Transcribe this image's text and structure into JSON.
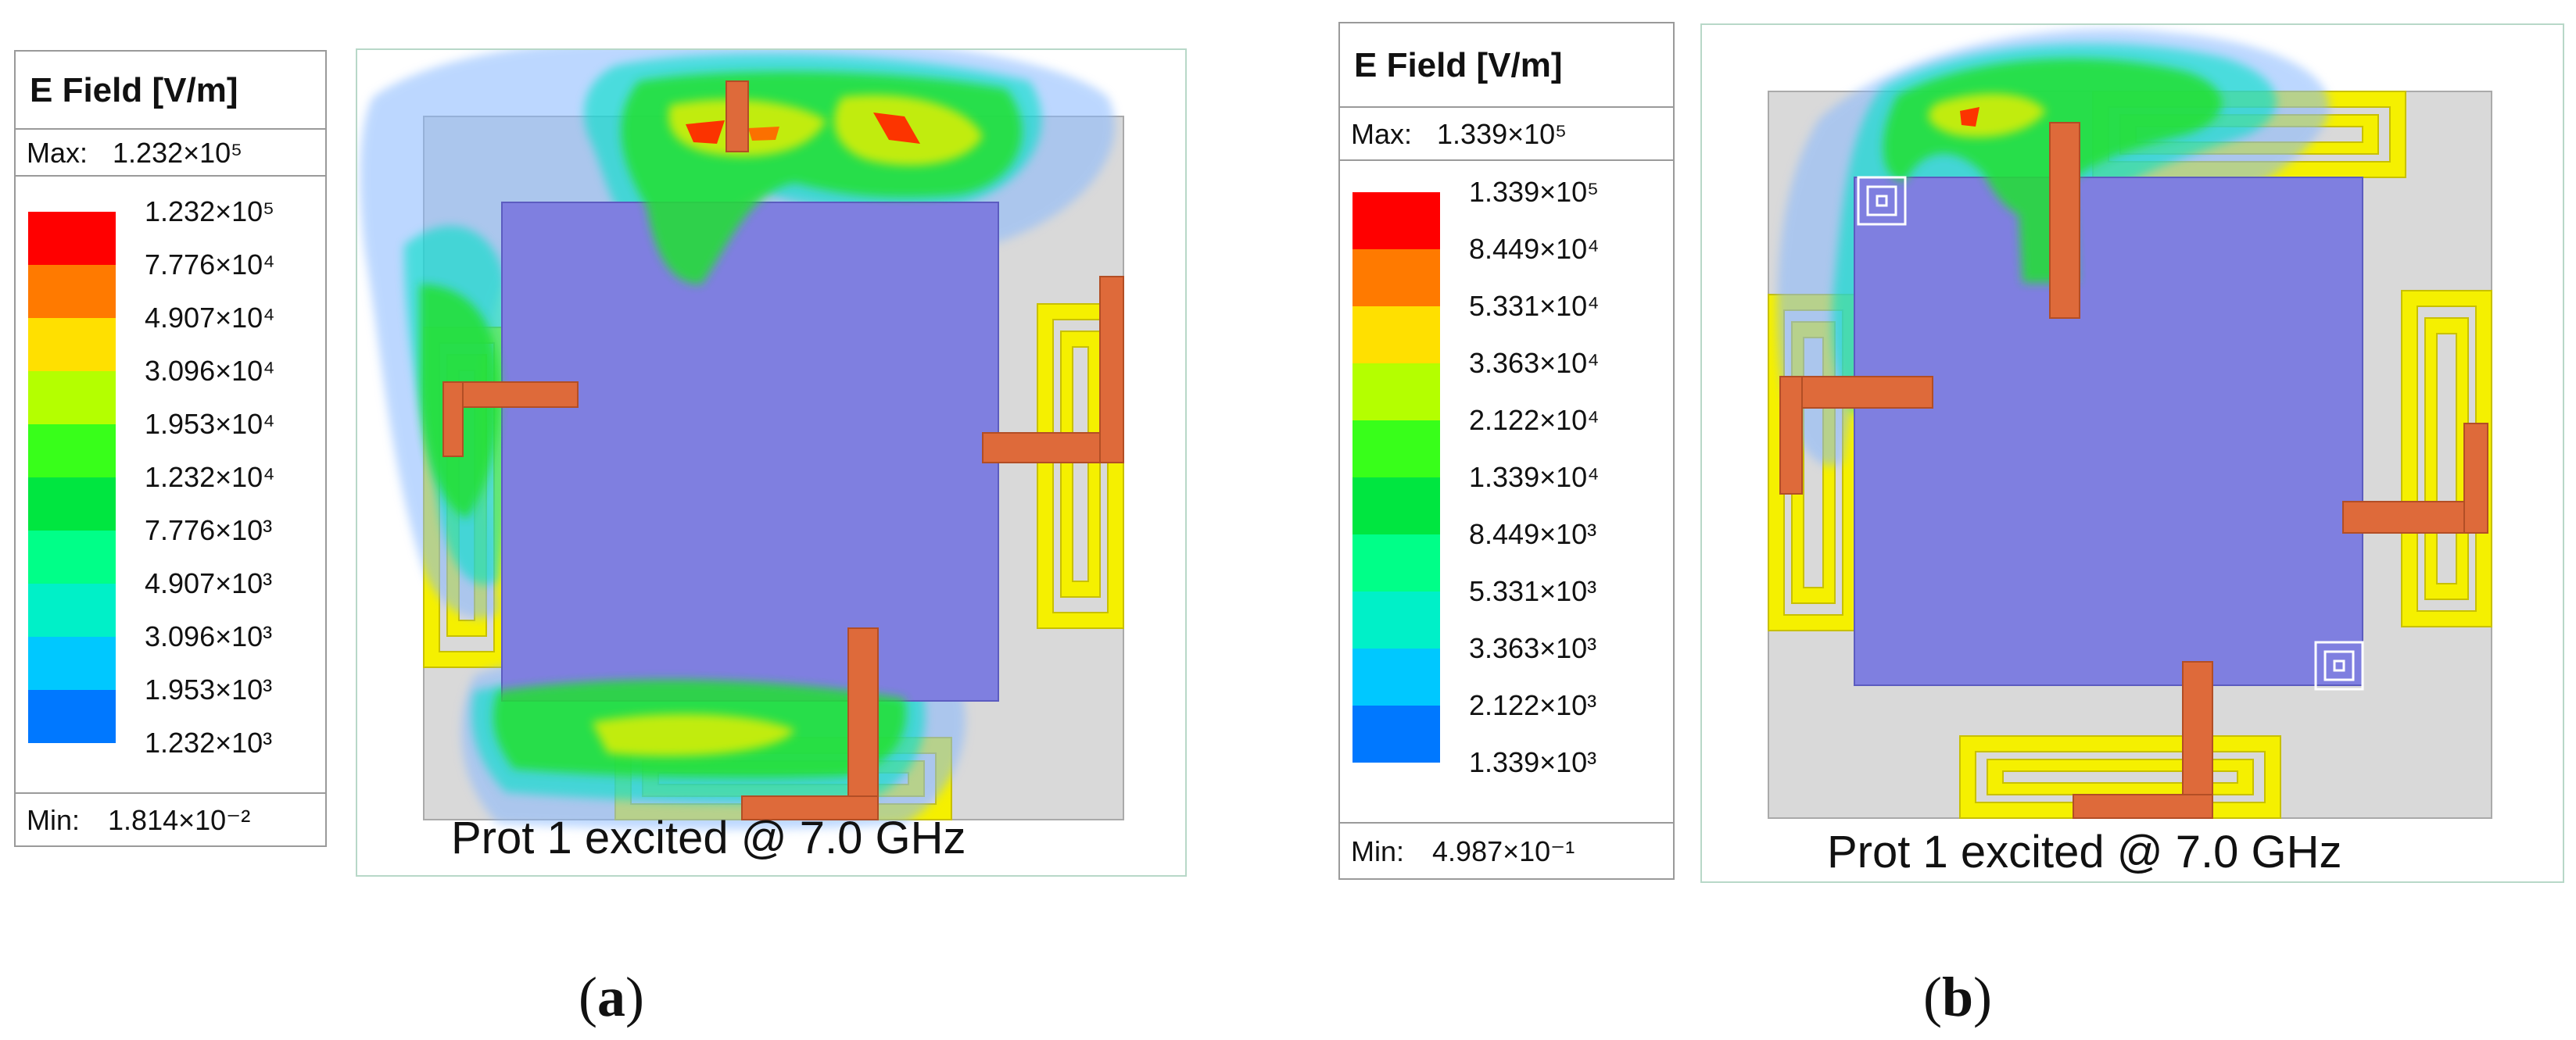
{
  "figure_a": {
    "legend": {
      "title": "E Field [V/m]",
      "max_label": "Max:",
      "max_value": "1.232×10⁵",
      "min_label": "Min:",
      "min_value": "1.814×10⁻²",
      "ticks": [
        "1.232×10⁵",
        "7.776×10⁴",
        "4.907×10⁴",
        "3.096×10⁴",
        "1.953×10⁴",
        "1.232×10⁴",
        "7.776×10³",
        "4.907×10³",
        "3.096×10³",
        "1.953×10³",
        "1.232×10³"
      ]
    },
    "caption": "Prot 1 excited @ 7.0 GHz",
    "label_open": "(",
    "label_letter": "a",
    "label_close": ")"
  },
  "figure_b": {
    "legend": {
      "title": "E Field [V/m]",
      "max_label": "Max:",
      "max_value": "1.339×10⁵",
      "min_label": "Min:",
      "min_value": "4.987×10⁻¹",
      "ticks": [
        "1.339×10⁵",
        "8.449×10⁴",
        "5.331×10⁴",
        "3.363×10⁴",
        "2.122×10⁴",
        "1.339×10⁴",
        "8.449×10³",
        "5.331×10³",
        "3.363×10³",
        "2.122×10³",
        "1.339×10³"
      ]
    },
    "caption": "Prot 1 excited @ 7.0 GHz",
    "label_open": "(",
    "label_letter": "b",
    "label_close": ")"
  },
  "colors": {
    "scale": [
      "#ff0000",
      "#ff7a00",
      "#ffe000",
      "#b4ff00",
      "#38ff1a",
      "#00e640",
      "#00ff88",
      "#00f0c8",
      "#00c8ff",
      "#0078ff",
      "#0000ff"
    ],
    "substrate": "#d9d9d9",
    "ground_patch": "#7f7fe0",
    "radiator": "#f5f000",
    "feed": "#de6a3a"
  }
}
